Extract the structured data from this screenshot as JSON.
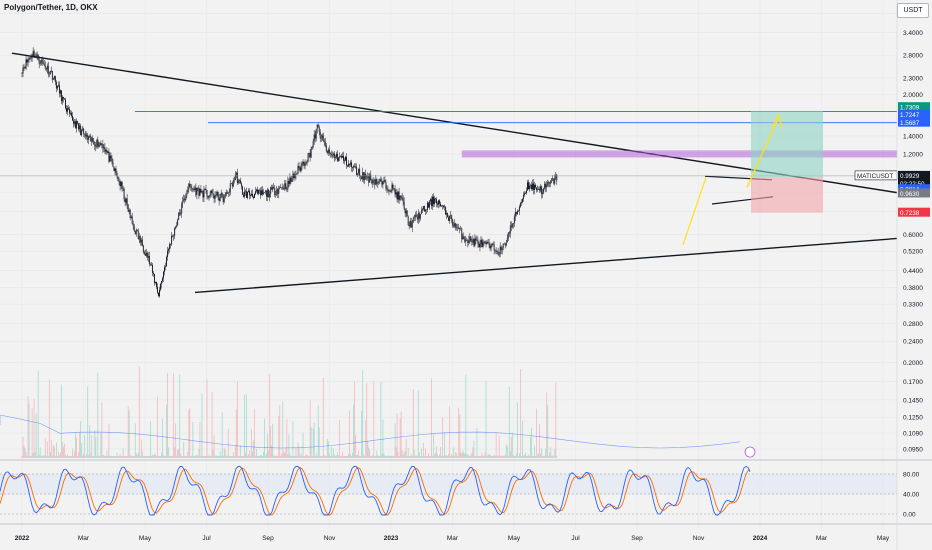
{
  "header": {
    "title": "Polygon/Tether, 1D, OKX"
  },
  "currency_button": "USDT",
  "colors": {
    "background": "#f2f2f2",
    "candle": "#131722",
    "blue_level": "#2962ff",
    "purple_zone": "#b05ad8",
    "target_zone": "#8ed3c3",
    "stop_zone": "#f2a5aa",
    "projection": "#ffe11a",
    "oscillator_k": "#2962ff",
    "oscillator_d": "#ff6d00"
  },
  "chart_data": {
    "type": "candlestick",
    "symbol": "MATICUSDT",
    "timeframe": "1D",
    "exchange": "OKX",
    "y_scale": "log",
    "y_ticks": [
      4.0,
      3.4,
      2.8,
      2.3,
      2.0,
      1.4,
      1.2,
      0.86,
      0.73,
      0.6,
      0.52,
      0.44,
      0.38,
      0.33,
      0.28,
      0.24,
      0.2,
      0.17,
      0.145,
      0.125,
      0.109,
      0.095
    ],
    "y_tick_labels": [
      "4.0000",
      "3.4000",
      "2.8000",
      "2.3000",
      "2.0000",
      "1.4000",
      "1.2000",
      "0.8600",
      "0.7300",
      "0.6000",
      "0.5200",
      "0.4400",
      "0.3800",
      "0.3300",
      "0.2800",
      "0.2400",
      "0.2000",
      "0.1700",
      "0.1450",
      "0.1250",
      "0.1090",
      "0.0950"
    ],
    "x_labels": [
      "2022",
      "Mar",
      "May",
      "Jul",
      "Sep",
      "Nov",
      "2023",
      "Mar",
      "May",
      "Jul",
      "Sep",
      "Nov",
      "2024",
      "Mar",
      "May"
    ],
    "price_path": [
      [
        0,
        2.5
      ],
      [
        0.03,
        2.85
      ],
      [
        0.08,
        2.4
      ],
      [
        0.13,
        1.65
      ],
      [
        0.18,
        1.35
      ],
      [
        0.22,
        1.3
      ],
      [
        0.27,
        0.9
      ],
      [
        0.3,
        0.65
      ],
      [
        0.34,
        0.5
      ],
      [
        0.37,
        0.36
      ],
      [
        0.4,
        0.55
      ],
      [
        0.45,
        0.9
      ],
      [
        0.5,
        0.85
      ],
      [
        0.55,
        0.82
      ],
      [
        0.58,
        1.0
      ],
      [
        0.6,
        0.85
      ],
      [
        0.66,
        0.85
      ],
      [
        0.72,
        0.92
      ],
      [
        0.78,
        1.2
      ],
      [
        0.8,
        1.5
      ],
      [
        0.83,
        1.2
      ],
      [
        0.87,
        1.15
      ],
      [
        0.92,
        1.0
      ],
      [
        0.96,
        0.95
      ],
      [
        1.0,
        0.9
      ],
      [
        1.03,
        0.8
      ],
      [
        1.05,
        0.65
      ],
      [
        1.08,
        0.72
      ],
      [
        1.12,
        0.82
      ],
      [
        1.15,
        0.72
      ],
      [
        1.2,
        0.58
      ],
      [
        1.25,
        0.55
      ],
      [
        1.3,
        0.52
      ],
      [
        1.34,
        0.72
      ],
      [
        1.37,
        0.92
      ],
      [
        1.41,
        0.88
      ],
      [
        1.45,
        0.98
      ]
    ],
    "levels": {
      "blue_upper": 1.7247,
      "blue_lower": 1.5687,
      "purple_zone": [
        1.17,
        1.23
      ]
    },
    "position": {
      "entry": 0.9814,
      "target": 1.7309,
      "stop": 0.7238
    },
    "price_tags": [
      {
        "label": "1.7309",
        "value": 1.7309,
        "color": "#089981"
      },
      {
        "label": "1.7247",
        "value": 1.7247,
        "color": "#2962ff"
      },
      {
        "label": "1.5687",
        "value": 1.5687,
        "color": "#2962ff"
      },
      {
        "label": "MATICUSDT",
        "value": 0.9929,
        "color": "#131722"
      },
      {
        "label": "0.9929",
        "value": 0.9929,
        "color": "#131722"
      },
      {
        "label": "02:22:50",
        "value": 0.9929,
        "color": "#131722"
      },
      {
        "label": "0.9814",
        "value": 0.9814,
        "color": "#2962ff"
      },
      {
        "label": "0.9630",
        "value": 0.963,
        "color": "#787b86"
      },
      {
        "label": "0.7238",
        "value": 0.7238,
        "color": "#f23645"
      }
    ],
    "oscillator": {
      "type": "stochastic",
      "levels": [
        80,
        40,
        0
      ],
      "level_labels": [
        "80.00",
        "40.00",
        "0.00"
      ]
    }
  }
}
